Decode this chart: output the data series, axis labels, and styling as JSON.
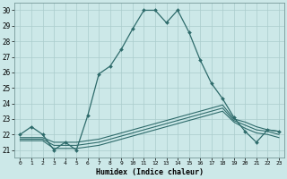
{
  "xlabel": "Humidex (Indice chaleur)",
  "xlim": [
    -0.5,
    23.5
  ],
  "ylim": [
    20.5,
    30.5
  ],
  "yticks": [
    21,
    22,
    23,
    24,
    25,
    26,
    27,
    28,
    29,
    30
  ],
  "xticks": [
    0,
    1,
    2,
    3,
    4,
    5,
    6,
    7,
    8,
    9,
    10,
    11,
    12,
    13,
    14,
    15,
    16,
    17,
    18,
    19,
    20,
    21,
    22,
    23
  ],
  "bg_color": "#cce8e8",
  "grid_color": "#aacccc",
  "line_color": "#2e6b6b",
  "curve1_y": [
    22.0,
    22.5,
    22.0,
    21.0,
    21.5,
    21.0,
    23.2,
    25.9,
    26.4,
    27.5,
    28.8,
    30.0,
    30.0,
    29.2,
    30.0,
    28.6,
    26.8,
    25.3,
    24.3,
    23.1,
    22.2,
    21.5,
    22.3,
    22.2
  ],
  "curve2_y": [
    21.8,
    21.8,
    21.8,
    21.5,
    21.5,
    21.5,
    21.6,
    21.7,
    21.9,
    22.1,
    22.3,
    22.5,
    22.7,
    22.9,
    23.1,
    23.3,
    23.5,
    23.7,
    23.9,
    23.0,
    22.8,
    22.5,
    22.3,
    22.2
  ],
  "curve3_y": [
    21.7,
    21.7,
    21.7,
    21.3,
    21.3,
    21.3,
    21.4,
    21.5,
    21.7,
    21.9,
    22.1,
    22.3,
    22.5,
    22.7,
    22.9,
    23.1,
    23.3,
    23.5,
    23.7,
    22.9,
    22.6,
    22.3,
    22.2,
    22.0
  ],
  "curve4_y": [
    21.6,
    21.6,
    21.6,
    21.1,
    21.1,
    21.1,
    21.2,
    21.3,
    21.5,
    21.7,
    21.9,
    22.1,
    22.3,
    22.5,
    22.7,
    22.9,
    23.1,
    23.3,
    23.5,
    22.8,
    22.4,
    22.1,
    22.0,
    21.8
  ]
}
